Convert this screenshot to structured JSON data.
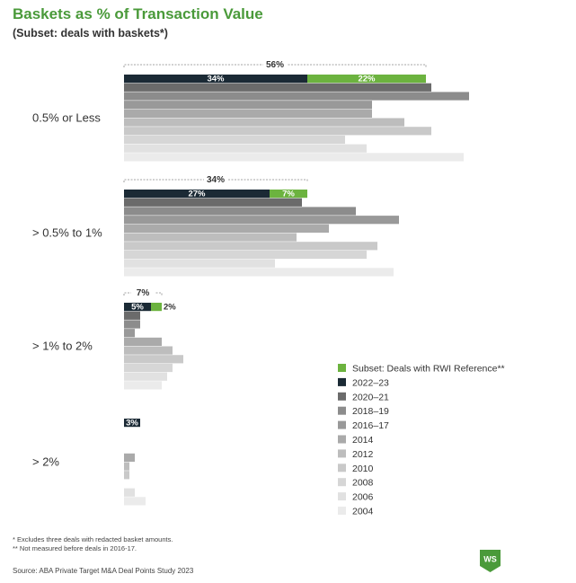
{
  "title": "Baskets as % of Transaction Value",
  "subtitle": "(Subset: deals with baskets*)",
  "footnotes": [
    "* Excludes three deals with redacted basket amounts.",
    "** Not measured before deals in 2016-17."
  ],
  "source": "Source: ABA Private Target M&A Deal Points Study 2023",
  "logo_text": "WS",
  "colors": {
    "rwi": "#6cb33f",
    "y2022_23": "#1b2a35",
    "y2020_21": "#6b6b6b",
    "y2018_19": "#8c8c8c",
    "y2016_17": "#999999",
    "y2014": "#aaaaaa",
    "y2012": "#bdbdbd",
    "y2010": "#c9c9c9",
    "y2008": "#d6d6d6",
    "y2006": "#e1e1e1",
    "y2004": "#ebebeb",
    "logo_bg": "#4a9a3a"
  },
  "chart_data": {
    "type": "bar",
    "orientation": "horizontal",
    "title": "Baskets as % of Transaction Value",
    "subtitle": "(Subset: deals with baskets*)",
    "categories": [
      "0.5% or Less",
      "> 0.5% to 1%",
      "> 1% to 2%",
      "> 2%"
    ],
    "series": [
      {
        "name": "2022–23",
        "values": [
          56,
          34,
          7,
          3
        ],
        "color": "#1b2a35",
        "rwi_subset": [
          22,
          7,
          2,
          null
        ],
        "non_rwi": [
          34,
          27,
          5,
          3
        ]
      },
      {
        "name": "2020–21",
        "values": [
          57,
          33,
          3,
          0
        ],
        "color": "#6b6b6b"
      },
      {
        "name": "2018–19",
        "values": [
          64,
          43,
          3,
          0
        ],
        "color": "#8c8c8c"
      },
      {
        "name": "2016–17",
        "values": [
          46,
          51,
          2,
          0
        ],
        "color": "#999999"
      },
      {
        "name": "2014",
        "values": [
          46,
          38,
          7,
          2
        ],
        "color": "#aaaaaa"
      },
      {
        "name": "2012",
        "values": [
          52,
          32,
          9,
          1
        ],
        "color": "#bdbdbd"
      },
      {
        "name": "2010",
        "values": [
          57,
          47,
          11,
          1
        ],
        "color": "#c9c9c9"
      },
      {
        "name": "2008",
        "values": [
          41,
          45,
          9,
          0
        ],
        "color": "#d6d6d6"
      },
      {
        "name": "2006",
        "values": [
          45,
          28,
          8,
          2
        ],
        "color": "#e1e1e1"
      },
      {
        "name": "2004",
        "values": [
          63,
          50,
          7,
          4
        ],
        "color": "#ebebeb"
      }
    ],
    "rwi_series": {
      "name": "Subset: Deals with RWI Reference**",
      "color": "#6cb33f"
    },
    "data_labels": [
      {
        "category": "0.5% or Less",
        "total": "56%",
        "non_rwi": "34%",
        "rwi": "22%"
      },
      {
        "category": "> 0.5% to 1%",
        "total": "34%",
        "non_rwi": "27%",
        "rwi": "7%"
      },
      {
        "category": "> 1% to 2%",
        "total": "7%",
        "non_rwi": "5%",
        "rwi": "2%"
      },
      {
        "category": "> 2%",
        "total": null,
        "non_rwi": "3%",
        "rwi": null
      }
    ],
    "legend": {
      "placement": "bottom-right",
      "entries": [
        {
          "label": "Subset: Deals with RWI Reference**",
          "color": "#6cb33f"
        },
        {
          "label": "2022–23",
          "color": "#1b2a35"
        },
        {
          "label": "2020–21",
          "color": "#6b6b6b"
        },
        {
          "label": "2018–19",
          "color": "#8c8c8c"
        },
        {
          "label": "2016–17",
          "color": "#999999"
        },
        {
          "label": "2014",
          "color": "#aaaaaa"
        },
        {
          "label": "2012",
          "color": "#bdbdbd"
        },
        {
          "label": "2010",
          "color": "#c9c9c9"
        },
        {
          "label": "2008",
          "color": "#d6d6d6"
        },
        {
          "label": "2006",
          "color": "#e1e1e1"
        },
        {
          "label": "2004",
          "color": "#ebebeb"
        }
      ]
    },
    "xlabel": "",
    "ylabel": "",
    "xlim": [
      0,
      70
    ],
    "grid": false
  }
}
